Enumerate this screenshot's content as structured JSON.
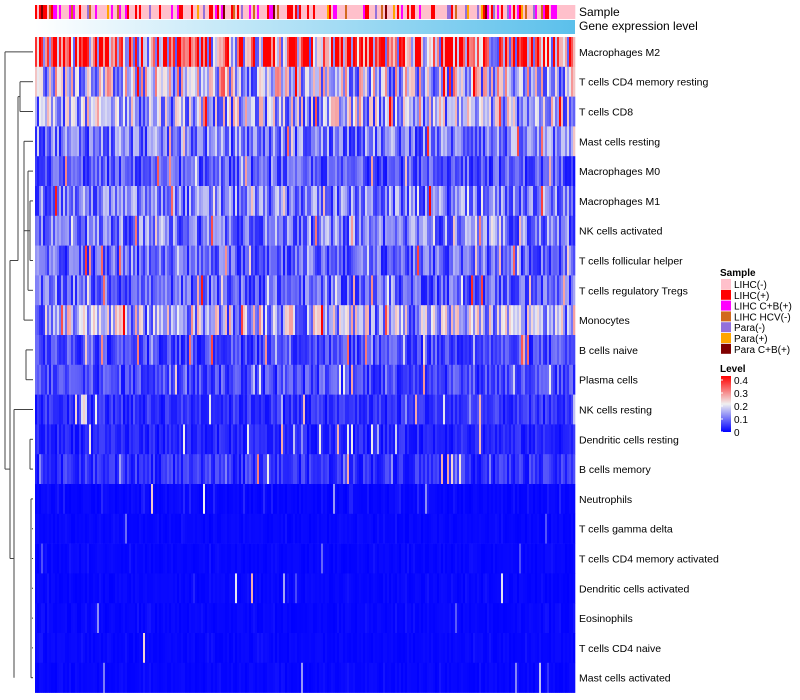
{
  "chart_data": {
    "type": "heatmap",
    "annotation_labels": [
      "Sample",
      "Gene expression level"
    ],
    "rows": [
      "Macrophages M2",
      "T cells CD4 memory resting",
      "T cells CD8",
      "Mast cells resting",
      "Macrophages M0",
      "Macrophages M1",
      "NK cells activated",
      "T cells follicular helper",
      "T cells regulatory  Tregs",
      "Monocytes",
      "B cells naive",
      "Plasma cells",
      "NK cells resting",
      "Dendritic cells resting",
      "B cells memory",
      "Neutrophils",
      "T cells gamma delta",
      "T cells CD4 memory activated",
      "Dendritic cells activated",
      "Eosinophils",
      "T cells CD4 naive",
      "Mast cells activated"
    ],
    "row_mean_levels": [
      0.3,
      0.17,
      0.15,
      0.1,
      0.07,
      0.1,
      0.1,
      0.08,
      0.08,
      0.15,
      0.06,
      0.06,
      0.04,
      0.03,
      0.04,
      0.02,
      0.01,
      0.01,
      0.01,
      0.01,
      0.01,
      0.01
    ],
    "n_columns": 270,
    "legend_sample": {
      "title": "Sample",
      "entries": [
        {
          "label": "LIHC(-)",
          "color": "#ffc0cb"
        },
        {
          "label": "LIHC(+)",
          "color": "#ff0000"
        },
        {
          "label": "LIHC C+B(+)",
          "color": "#ff00ff"
        },
        {
          "label": "LIHC HCV(-)",
          "color": "#d2691e"
        },
        {
          "label": "Para(-)",
          "color": "#9370db"
        },
        {
          "label": "Para(+)",
          "color": "#ffa500"
        },
        {
          "label": "Para C+B(+)",
          "color": "#800000"
        }
      ]
    },
    "legend_level": {
      "title": "Level",
      "ticks": [
        "0.4",
        "0.3",
        "0.2",
        "0.1",
        "0"
      ],
      "range": [
        0,
        0.4
      ],
      "colors": [
        "#0000ff",
        "#f0f0f0",
        "#ff0000"
      ]
    },
    "gene_expression_colors": [
      "#ffffff",
      "#5bc0eb"
    ]
  }
}
